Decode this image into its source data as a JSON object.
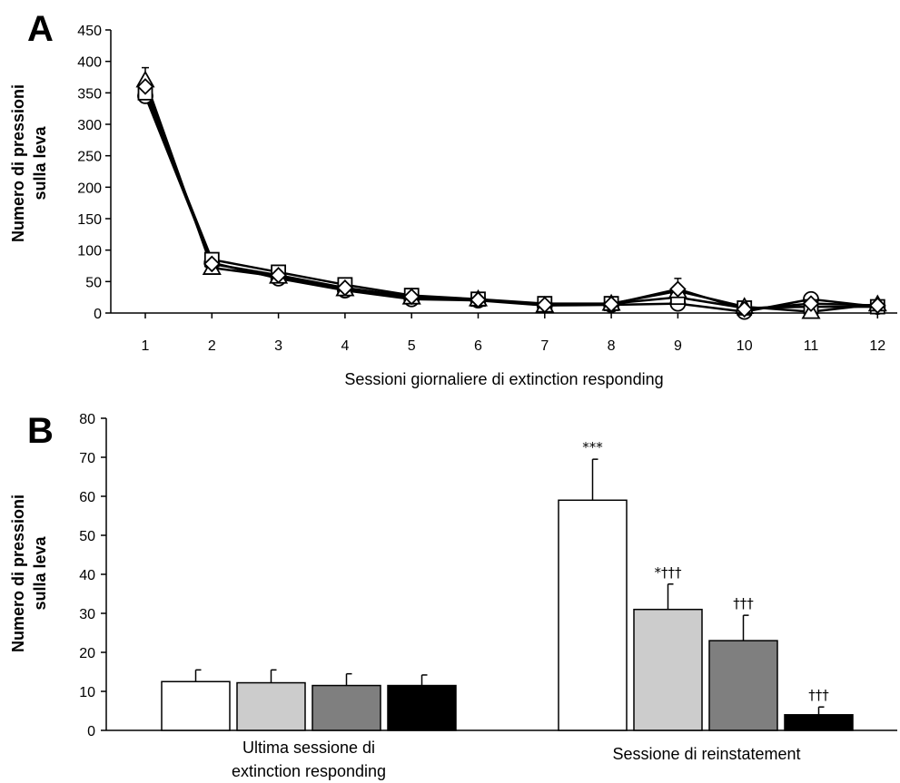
{
  "chart_data": [
    {
      "panel": "A",
      "type": "line",
      "xlabel": "Sessioni giornaliere di extinction responding",
      "ylabel_lines": [
        "Numero di pressioni",
        "sulla leva"
      ],
      "x": [
        1,
        2,
        3,
        4,
        5,
        6,
        7,
        8,
        9,
        10,
        11,
        12
      ],
      "ylim": [
        0,
        450
      ],
      "yticks": [
        0,
        50,
        100,
        150,
        200,
        250,
        300,
        350,
        400,
        450
      ],
      "series": [
        {
          "marker": "circle",
          "values": [
            345,
            80,
            55,
            36,
            22,
            20,
            12,
            13,
            15,
            2,
            22,
            10
          ]
        },
        {
          "marker": "square",
          "values": [
            350,
            85,
            65,
            45,
            28,
            22,
            15,
            15,
            25,
            8,
            10,
            10
          ]
        },
        {
          "marker": "triangle",
          "values": [
            370,
            72,
            58,
            38,
            25,
            22,
            12,
            15,
            35,
            10,
            2,
            14
          ]
        },
        {
          "marker": "diamond",
          "values": [
            360,
            78,
            60,
            40,
            26,
            21,
            13,
            14,
            38,
            6,
            15,
            12
          ]
        }
      ],
      "error_tops": [
        390,
        95,
        68,
        47,
        30,
        25,
        17,
        17,
        55,
        12,
        25,
        15
      ]
    },
    {
      "panel": "B",
      "type": "bar",
      "ylabel_lines": [
        "Numero di pressioni",
        "sulla leva"
      ],
      "ylim": [
        0,
        80
      ],
      "yticks": [
        0,
        10,
        20,
        30,
        40,
        50,
        60,
        70,
        80
      ],
      "bar_colors": [
        "#ffffff",
        "#cccccc",
        "#7f7f7f",
        "#000000"
      ],
      "groups": [
        {
          "label_lines": [
            "Ultima sessione di",
            "extinction responding"
          ],
          "values": [
            12.5,
            12.2,
            11.5,
            11.5
          ],
          "errors": [
            3.0,
            3.3,
            3.0,
            2.7
          ],
          "annotations": [
            "",
            "",
            "",
            ""
          ]
        },
        {
          "label_lines": [
            "Sessione di reinstatement"
          ],
          "values": [
            59,
            31,
            23,
            4
          ],
          "errors": [
            10.5,
            6.5,
            6.5,
            2.0
          ],
          "annotations": [
            "***",
            "*†††",
            "†††",
            "†††"
          ]
        }
      ]
    }
  ]
}
